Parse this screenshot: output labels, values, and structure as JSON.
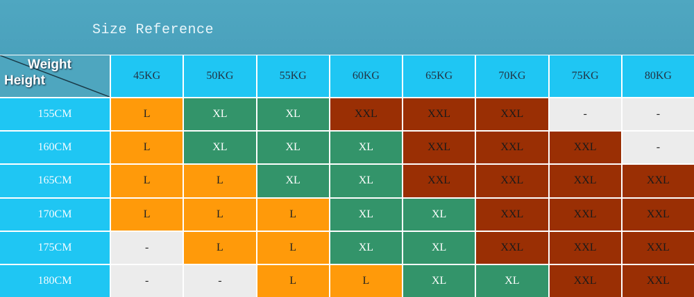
{
  "header": {
    "title": "Size Reference"
  },
  "table": {
    "corner": {
      "top": "Weight",
      "bottom": "Height"
    },
    "columns": [
      "45KG",
      "50KG",
      "55KG",
      "60KG",
      "65KG",
      "70KG",
      "75KG",
      "80KG"
    ],
    "rows": [
      {
        "label": "155CM",
        "cells": [
          "L",
          "XL",
          "XL",
          "XXL",
          "XXL",
          "XXL",
          "-",
          "-"
        ]
      },
      {
        "label": "160CM",
        "cells": [
          "L",
          "XL",
          "XL",
          "XL",
          "XXL",
          "XXL",
          "XXL",
          "-"
        ]
      },
      {
        "label": "165CM",
        "cells": [
          "L",
          "L",
          "XL",
          "XL",
          "XXL",
          "XXL",
          "XXL",
          "XXL"
        ]
      },
      {
        "label": "170CM",
        "cells": [
          "L",
          "L",
          "L",
          "XL",
          "XL",
          "XXL",
          "XXL",
          "XXL"
        ]
      },
      {
        "label": "175CM",
        "cells": [
          "-",
          "L",
          "L",
          "XL",
          "XL",
          "XXL",
          "XXL",
          "XXL"
        ]
      },
      {
        "label": "180CM",
        "cells": [
          "-",
          "-",
          "L",
          "L",
          "XL",
          "XL",
          "XXL",
          "XXL"
        ]
      }
    ],
    "palette": {
      "L": {
        "bg": "#ff9a0a",
        "fg": "#222"
      },
      "XL": {
        "bg": "#33946a",
        "fg": "#fff"
      },
      "XXL": {
        "bg": "#9a2f04",
        "fg": "#1a1a1a"
      },
      "-": {
        "bg": "#ececec",
        "fg": "#222"
      }
    }
  }
}
